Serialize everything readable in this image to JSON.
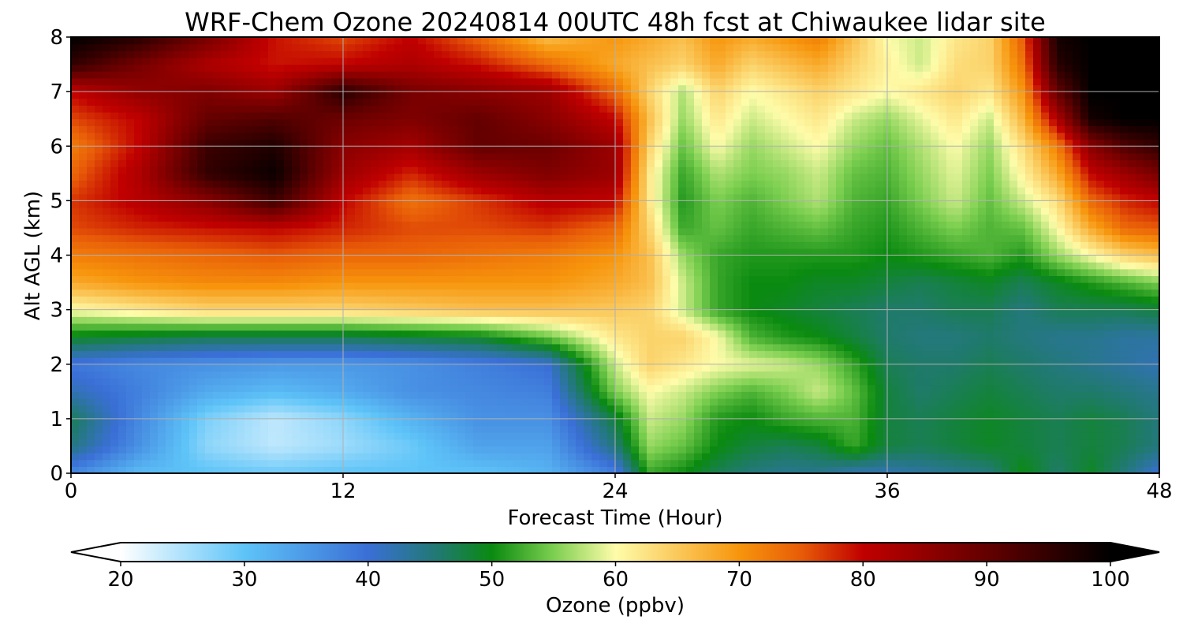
{
  "chart_data": {
    "type": "heatmap",
    "title": "WRF-Chem Ozone  20240814 00UTC 48h fcst at Chiwaukee lidar site",
    "xlabel": "Forecast Time (Hour)",
    "ylabel": "Alt AGL (km)",
    "xlim": [
      0,
      48
    ],
    "ylim": [
      0,
      8
    ],
    "xticks": [
      0,
      12,
      24,
      36,
      48
    ],
    "yticks": [
      0,
      1,
      2,
      3,
      4,
      5,
      6,
      7,
      8
    ],
    "grid": true,
    "colorbar": {
      "label": "Ozone  (ppbv)",
      "min": 20,
      "max": 100,
      "ticks": [
        20,
        30,
        40,
        50,
        60,
        70,
        80,
        90,
        100
      ],
      "extend": "both",
      "orientation": "horizontal",
      "color_stops": [
        {
          "v": 20,
          "c": "#ffffff"
        },
        {
          "v": 30,
          "c": "#5ec4f8"
        },
        {
          "v": 40,
          "c": "#3a6fd6"
        },
        {
          "v": 46,
          "c": "#1f7a6a"
        },
        {
          "v": 50,
          "c": "#0a8a10"
        },
        {
          "v": 55,
          "c": "#7ccf50"
        },
        {
          "v": 60,
          "c": "#fefcaa"
        },
        {
          "v": 70,
          "c": "#f7950c"
        },
        {
          "v": 75,
          "c": "#e85c08"
        },
        {
          "v": 80,
          "c": "#c00000"
        },
        {
          "v": 90,
          "c": "#640000"
        },
        {
          "v": 100,
          "c": "#000000"
        }
      ]
    },
    "x_hours": [
      0,
      3,
      6,
      9,
      12,
      15,
      18,
      21,
      24,
      25.5,
      27,
      28.5,
      30,
      31.5,
      33,
      34.5,
      36,
      37.5,
      39,
      40.5,
      42,
      43.5,
      45,
      46.5,
      48
    ],
    "y_km": [
      0,
      0.5,
      1,
      1.5,
      2,
      2.5,
      3,
      3.5,
      4,
      4.5,
      5,
      5.5,
      6,
      6.5,
      7,
      7.5,
      8
    ],
    "ozone_ppbv": [
      [
        37,
        31,
        30,
        29,
        30,
        30,
        30,
        32,
        38,
        52,
        50,
        47,
        45,
        44,
        44,
        42,
        42,
        43,
        44,
        45,
        50,
        46,
        49,
        45,
        40
      ],
      [
        45,
        36,
        27,
        24,
        26,
        29,
        34,
        34,
        45,
        56,
        54,
        50,
        48,
        47,
        48,
        52,
        48,
        47,
        48,
        49,
        48,
        47,
        48,
        47,
        45
      ],
      [
        47,
        37,
        28,
        24,
        27,
        32,
        36,
        36,
        48,
        58,
        56,
        51,
        50,
        52,
        53,
        53,
        48,
        47,
        48,
        49,
        48,
        47,
        48,
        47,
        45
      ],
      [
        42,
        38,
        33,
        31,
        33,
        36,
        37,
        38,
        55,
        60,
        58,
        55,
        53,
        55,
        58,
        54,
        48,
        46,
        47,
        48,
        47,
        46,
        46,
        45,
        44
      ],
      [
        39,
        37,
        36,
        35,
        35,
        36,
        38,
        40,
        58,
        64,
        62,
        60,
        59,
        58,
        56,
        52,
        47,
        46,
        46,
        47,
        46,
        45,
        44,
        43,
        42
      ],
      [
        49,
        48,
        47,
        47,
        47,
        48,
        49,
        54,
        62,
        64,
        64,
        60,
        53,
        51,
        50,
        48,
        46,
        45,
        45,
        46,
        45,
        44,
        44,
        43,
        43
      ],
      [
        60,
        62,
        64,
        64,
        64,
        65,
        66,
        66,
        65,
        64,
        58,
        52,
        50,
        49,
        48,
        47,
        46,
        46,
        47,
        47,
        45,
        47,
        47,
        47,
        48
      ],
      [
        68,
        70,
        71,
        71,
        70,
        70,
        70,
        70,
        68,
        66,
        58,
        52,
        50,
        50,
        49,
        49,
        48,
        47,
        48,
        49,
        47,
        49,
        51,
        53,
        55
      ],
      [
        72,
        73,
        74,
        75,
        74,
        74,
        73,
        72,
        70,
        66,
        56,
        52,
        51,
        51,
        51,
        51,
        50,
        51,
        52,
        53,
        51,
        56,
        60,
        64,
        66
      ],
      [
        76,
        78,
        79,
        80,
        78,
        76,
        76,
        77,
        74,
        64,
        52,
        54,
        52,
        53,
        54,
        52,
        51,
        53,
        55,
        53,
        54,
        60,
        68,
        74,
        75
      ],
      [
        77,
        81,
        86,
        94,
        80,
        73,
        77,
        81,
        80,
        62,
        51,
        55,
        53,
        55,
        57,
        53,
        52,
        55,
        58,
        54,
        58,
        63,
        74,
        78,
        80
      ],
      [
        74,
        82,
        95,
        99,
        84,
        78,
        84,
        87,
        84,
        62,
        52,
        57,
        55,
        56,
        58,
        54,
        53,
        56,
        59,
        55,
        61,
        68,
        80,
        84,
        88
      ],
      [
        72,
        80,
        94,
        97,
        86,
        83,
        90,
        89,
        84,
        64,
        54,
        60,
        56,
        58,
        60,
        56,
        54,
        57,
        60,
        56,
        63,
        72,
        86,
        92,
        95
      ],
      [
        76,
        80,
        90,
        92,
        89,
        87,
        90,
        86,
        80,
        66,
        56,
        62,
        58,
        60,
        62,
        58,
        56,
        59,
        62,
        58,
        67,
        82,
        98,
        100,
        100
      ],
      [
        80,
        85,
        87,
        84,
        96,
        88,
        86,
        84,
        74,
        64,
        57,
        64,
        60,
        62,
        64,
        62,
        60,
        62,
        64,
        62,
        70,
        90,
        100,
        100,
        100
      ],
      [
        95,
        88,
        82,
        79,
        80,
        82,
        79,
        74,
        68,
        66,
        64,
        68,
        64,
        66,
        68,
        64,
        61,
        58,
        63,
        64,
        73,
        96,
        100,
        100,
        100
      ],
      [
        100,
        96,
        88,
        79,
        76,
        80,
        74,
        66,
        70,
        68,
        66,
        70,
        68,
        70,
        72,
        66,
        60,
        58,
        62,
        64,
        75,
        98,
        100,
        100,
        100
      ]
    ]
  }
}
